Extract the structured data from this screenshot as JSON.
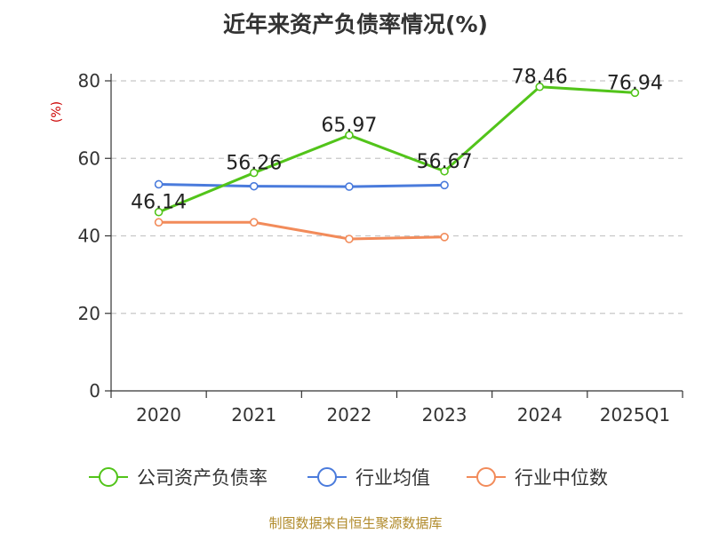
{
  "chart_data": {
    "type": "line",
    "title": "近年来资产负债率情况(%)",
    "ylabel": "(%)",
    "xlabel": "",
    "categories": [
      "2020",
      "2021",
      "2022",
      "2023",
      "2024",
      "2025Q1"
    ],
    "ylim": [
      0,
      80
    ],
    "yticks": [
      "0",
      "20",
      "40",
      "60",
      "80"
    ],
    "grid": true,
    "legend_position": "bottom",
    "series": [
      {
        "name": "公司资产负债率",
        "color": "#52c41a",
        "values": [
          46.14,
          56.26,
          65.97,
          56.67,
          78.46,
          76.94
        ],
        "labels": [
          "46.14",
          "56.26",
          "65.97",
          "56.67",
          "78.46",
          "76.94"
        ]
      },
      {
        "name": "行业均值",
        "color": "#4a7bdc",
        "values": [
          53.3,
          52.8,
          52.7,
          53.1,
          null,
          null
        ]
      },
      {
        "name": "行业中位数",
        "color": "#f28b5a",
        "values": [
          43.5,
          43.5,
          39.2,
          39.7,
          null,
          null
        ]
      }
    ]
  },
  "colors": {
    "ylabel": "#cc0000",
    "axis": "#333333",
    "grid": "#c8c8c8",
    "source": "#b08a2a"
  },
  "source_note": "制图数据来自恒生聚源数据库"
}
